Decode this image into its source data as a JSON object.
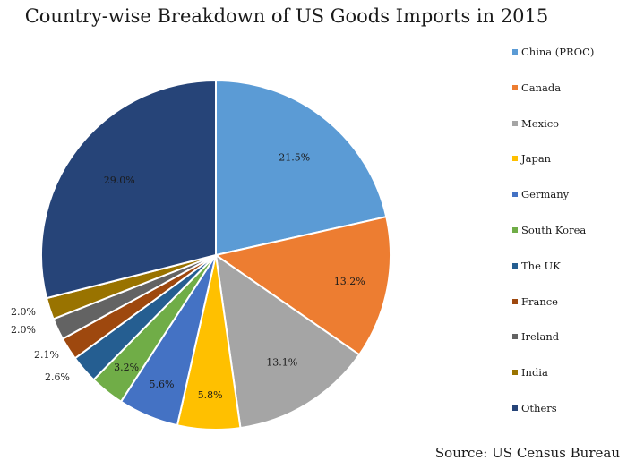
{
  "chart_data": {
    "type": "pie",
    "title": "Country-wise Breakdown of US Goods Imports in 2015",
    "categories": [
      "China (PROC)",
      "Canada",
      "Mexico",
      "Japan",
      "Germany",
      "South Korea",
      "The UK",
      "France",
      "Ireland",
      "India",
      "Others"
    ],
    "values": [
      21.5,
      13.2,
      13.1,
      5.8,
      5.6,
      3.2,
      2.6,
      2.1,
      2.0,
      2.0,
      29.0
    ],
    "labels": [
      "21.5%",
      "13.2%",
      "13.1%",
      "5.8%",
      "5.6%",
      "3.2%",
      "2.6%",
      "2.1%",
      "2.0%",
      "2.0%",
      "29.0%"
    ],
    "colors": [
      "#5b9bd5",
      "#ed7d31",
      "#a5a5a5",
      "#ffc000",
      "#4472c4",
      "#70ad47",
      "#255e91",
      "#9e480e",
      "#636363",
      "#997300",
      "#264478"
    ],
    "legend_position": "right",
    "source": "Source: US Census Bureau"
  }
}
